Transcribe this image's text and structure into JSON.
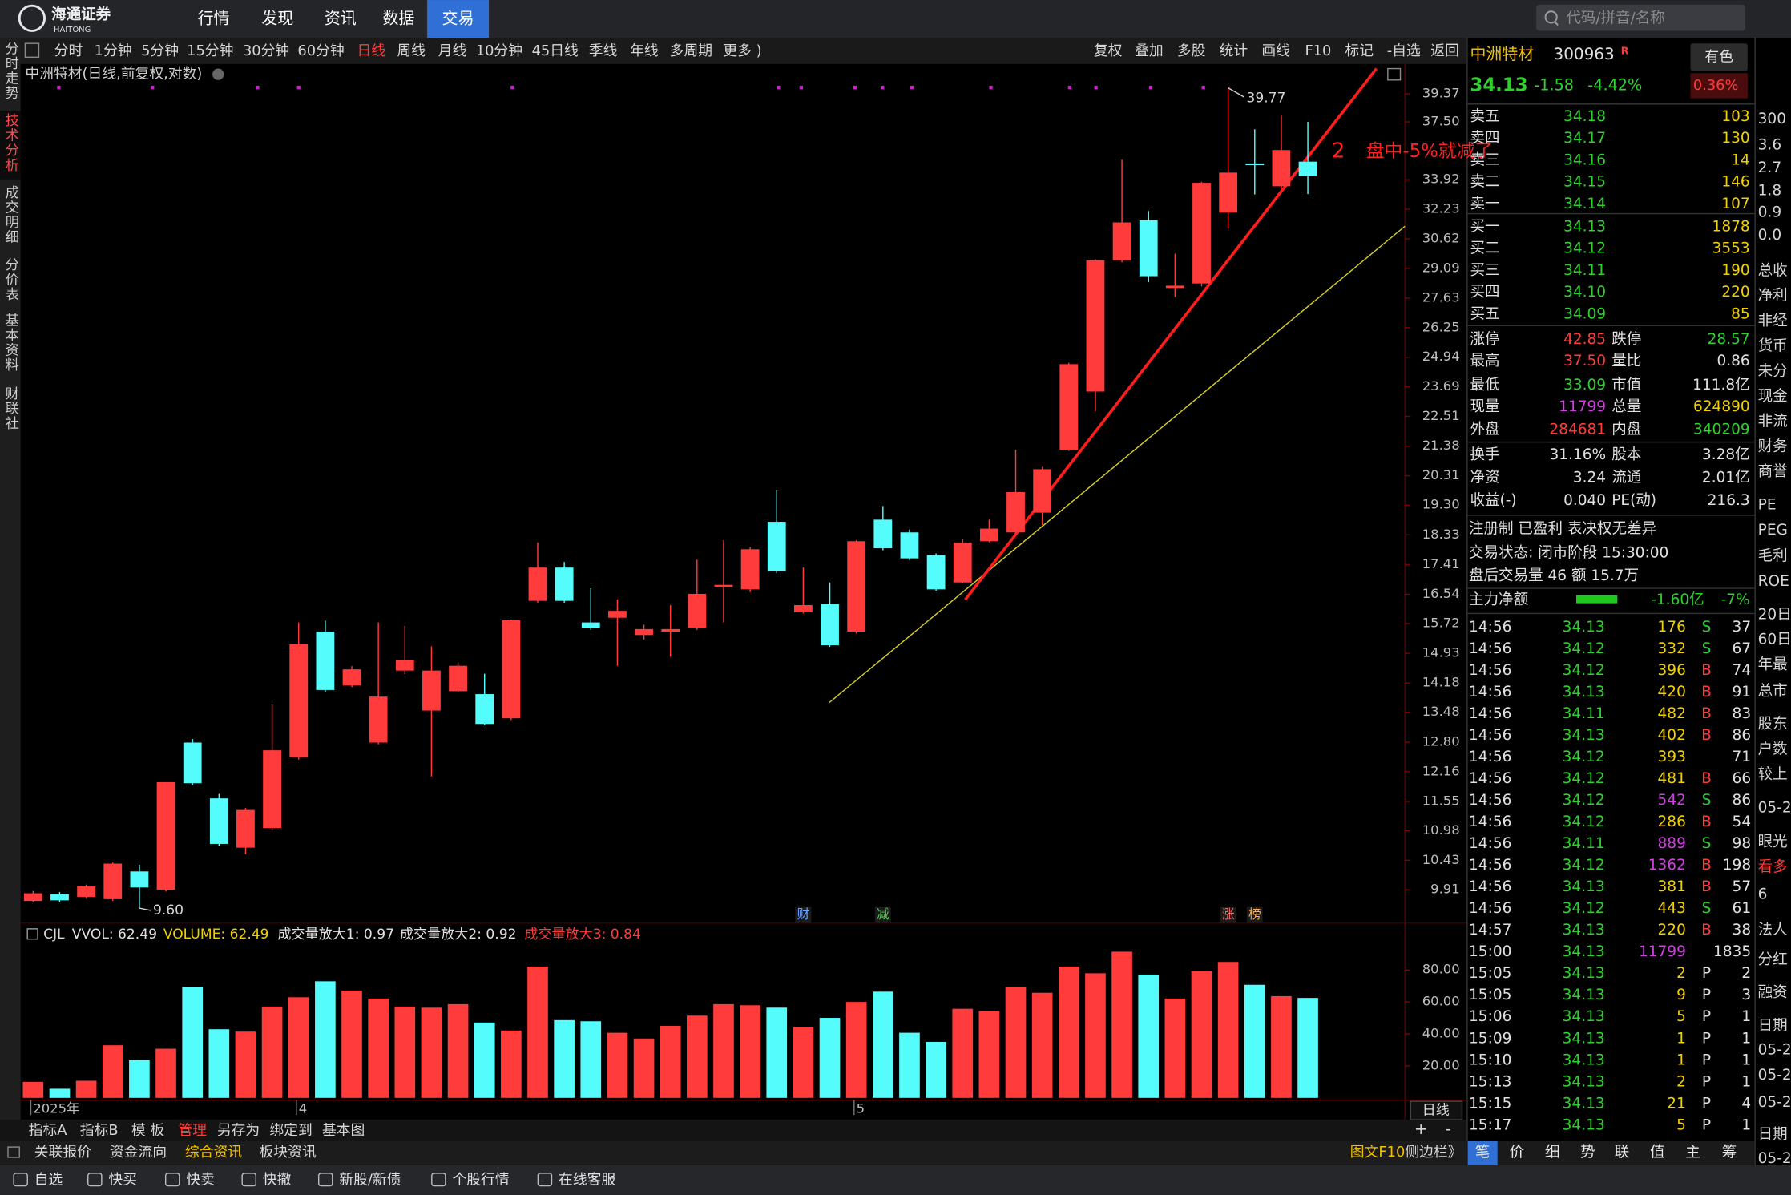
{
  "top_bar": {
    "logo": "海通证券",
    "logo_sub": "HAITONG",
    "menu": [
      "行情",
      "发现",
      "资讯",
      "数据",
      "交易"
    ],
    "search_placeholder": "代码/拼音/名称"
  },
  "side_tabs": [
    "分时走势",
    "技术分析",
    "成交明细",
    "分价表",
    "基本资料",
    "财联社"
  ],
  "chart_toolbar": {
    "periods": [
      "分时",
      "1分钟",
      "5分钟",
      "15分钟",
      "30分钟",
      "60分钟",
      "日线",
      "周线",
      "月线",
      "10分钟",
      "45日线",
      "季线",
      "年线",
      "多周期",
      "更多 )"
    ],
    "tools": [
      "复权",
      "叠加",
      "多股",
      "统计",
      "画线",
      "F10",
      "标记",
      "-自选",
      "返回"
    ]
  },
  "chart_title": "中洲特材(日线,前复权,对数)",
  "chart_data": [
    {
      "type": "candlestick",
      "categories": [
        "2025年",
        null,
        null,
        null,
        null,
        null,
        null,
        null,
        null,
        null,
        "4",
        null,
        null,
        null,
        null,
        null,
        null,
        null,
        null,
        null,
        null,
        null,
        null,
        null,
        null,
        null,
        null,
        null,
        null,
        null,
        null,
        "5",
        null,
        null,
        null,
        null,
        null,
        null,
        null,
        null,
        null,
        null,
        null,
        null,
        null,
        null,
        null,
        null,
        null
      ],
      "open": [
        9.72,
        9.83,
        9.79,
        9.75,
        10.23,
        9.91,
        12.79,
        11.61,
        10.66,
        11.03,
        12.47,
        15.5,
        14.12,
        12.79,
        14.49,
        13.52,
        13.98,
        13.91,
        13.34,
        16.35,
        17.32,
        15.75,
        15.88,
        15.41,
        15.5,
        15.6,
        16.75,
        16.68,
        18.75,
        16.03,
        16.26,
        15.5,
        18.82,
        18.41,
        17.7,
        16.88,
        18.13,
        18.41,
        19.05,
        21.24,
        23.5,
        29.5,
        31.62,
        28.12,
        28.34,
        32.04,
        34.89,
        33.54,
        35.0
      ],
      "high": [
        9.89,
        9.87,
        10.0,
        10.39,
        10.35,
        11.94,
        12.87,
        11.7,
        11.42,
        13.66,
        15.75,
        15.8,
        14.6,
        15.75,
        15.66,
        15.11,
        14.7,
        14.41,
        15.83,
        18.09,
        17.49,
        16.71,
        16.39,
        15.69,
        16.23,
        17.56,
        18.16,
        17.95,
        19.82,
        17.32,
        16.88,
        18.16,
        19.27,
        18.5,
        17.75,
        18.2,
        18.82,
        21.24,
        20.62,
        24.7,
        29.55,
        35.12,
        32.13,
        29.84,
        33.8,
        39.77,
        37.02,
        37.91,
        37.5
      ],
      "low": [
        9.7,
        9.7,
        9.76,
        9.72,
        9.6,
        9.88,
        11.88,
        10.69,
        10.54,
        10.98,
        12.42,
        13.95,
        14.08,
        12.75,
        14.4,
        12.06,
        13.95,
        13.18,
        13.3,
        16.3,
        16.3,
        15.55,
        14.61,
        15.29,
        14.84,
        15.55,
        15.75,
        16.6,
        17.15,
        16.0,
        15.1,
        15.45,
        17.85,
        17.55,
        16.64,
        16.85,
        18.1,
        18.35,
        18.64,
        21.2,
        22.72,
        29.4,
        28.4,
        27.68,
        28.2,
        31.17,
        33.07,
        33.4,
        33.09
      ],
      "close": [
        9.85,
        9.73,
        9.97,
        10.37,
        9.95,
        11.94,
        11.92,
        10.73,
        11.38,
        12.62,
        15.17,
        14.01,
        14.52,
        13.85,
        14.75,
        14.49,
        14.61,
        13.21,
        15.81,
        17.32,
        16.35,
        15.6,
        16.07,
        15.57,
        15.57,
        16.55,
        16.81,
        17.88,
        17.22,
        16.23,
        15.14,
        18.13,
        17.91,
        17.6,
        16.68,
        18.09,
        18.53,
        19.74,
        20.54,
        24.64,
        29.5,
        31.5,
        28.7,
        28.23,
        33.74,
        34.34,
        34.8,
        35.71,
        34.13
      ],
      "up_color": "#ff3b3b",
      "down_color": "#54fcfc",
      "log_scale": true,
      "ylim": [
        9.41,
        40.16
      ],
      "yticks": [
        39.37,
        {
          "value": 37.5,
          "label": "37.50"
        },
        33.92,
        32.23,
        30.62,
        29.09,
        27.63,
        26.25,
        24.94,
        23.69,
        22.51,
        21.38,
        20.31,
        {
          "value": 19.3,
          "label": "19.30"
        },
        18.33,
        17.41,
        16.54,
        15.72,
        14.93,
        14.18,
        13.48,
        {
          "value": 12.8,
          "label": "12.80"
        },
        12.16,
        11.55,
        10.98,
        10.43,
        9.91
      ],
      "high_label": "39.77",
      "low_label": "9.60",
      "note_number": "2",
      "note": "盘中-5%就减了",
      "events": [
        "财",
        "减",
        "涨",
        "榜"
      ]
    },
    {
      "type": "bar",
      "indicator": "CJL",
      "legend": [
        "VVOL: 62.49",
        "VOLUME: 62.49",
        "成交量放大1: 0.97",
        "成交量放大2: 0.92",
        "成交量放大3: 0.84"
      ],
      "values": [
        10,
        5.7,
        10.7,
        32.9,
        23.6,
        30.7,
        69.3,
        42.9,
        41.4,
        57.1,
        62.9,
        72.9,
        67.1,
        62.1,
        57.1,
        56.4,
        58.6,
        47.1,
        42.1,
        82.1,
        48.6,
        47.9,
        40.7,
        37.1,
        45,
        51.4,
        58.6,
        57.9,
        56.4,
        44.3,
        50,
        60,
        66.4,
        40.7,
        35,
        55.7,
        54.3,
        69.3,
        65.7,
        82.1,
        77.9,
        91.4,
        77.1,
        62.1,
        79.3,
        85,
        70.7,
        63.6,
        62.49
      ],
      "ylim": [
        0,
        93
      ],
      "yticks": [
        {
          "value": 80,
          "label": "80.00"
        },
        {
          "value": 60,
          "label": "60.00"
        },
        {
          "value": 40,
          "label": "40.00"
        },
        {
          "value": 20,
          "label": "20.00"
        }
      ],
      "period_label": "日线"
    }
  ],
  "axis_controls": [
    "+",
    "-"
  ],
  "indicator_tabs": [
    "指标A",
    "指标B",
    "模 板",
    "管理",
    "另存为",
    "绑定到",
    "基本图"
  ],
  "info_tabs": [
    "关联报价",
    "资金流向",
    "综合资讯",
    "板块资讯"
  ],
  "side_links": [
    "图文F10",
    "侧边栏》"
  ],
  "status_bar": [
    "自选",
    "快买",
    "快卖",
    "快撤",
    "新股/新债",
    "个股行情",
    "在线客服"
  ],
  "quote": {
    "name": "中洲特材",
    "code": "300963",
    "badge": "R",
    "sector": "有色",
    "price": "34.13",
    "change": "-1.58",
    "change_pct": "-4.42%",
    "sector_change": "0.36%"
  },
  "order_book": [
    [
      "卖五",
      "34.18",
      "103"
    ],
    [
      "卖四",
      "34.17",
      "130"
    ],
    [
      "卖三",
      "34.16",
      "14"
    ],
    [
      "卖二",
      "34.15",
      "146"
    ],
    [
      "卖一",
      "34.14",
      "107"
    ],
    [
      "买一",
      "34.13",
      "1878"
    ],
    [
      "买二",
      "34.12",
      "3553"
    ],
    [
      "买三",
      "34.11",
      "190"
    ],
    [
      "买四",
      "34.10",
      "220"
    ],
    [
      "买五",
      "34.09",
      "85"
    ]
  ],
  "stats": [
    [
      "涨停",
      "42.85",
      "跌停",
      "28.57"
    ],
    [
      "最高",
      "37.50",
      "量比",
      "0.86"
    ],
    [
      "最低",
      "33.09",
      "市值",
      "111.8亿"
    ],
    [
      "现量",
      "11799",
      "总量",
      "624890"
    ],
    [
      "外盘",
      "284681",
      "内盘",
      "340209"
    ],
    [
      "换手",
      "31.16%",
      "股本",
      "3.28亿"
    ],
    [
      "净资",
      "3.24",
      "流通",
      "2.01亿"
    ],
    [
      "收益(-)",
      "0.040",
      "PE(动)",
      "216.3"
    ]
  ],
  "info_lines": [
    "注册制 已盈利 表决权无差异",
    "交易状态: 闭市阶段 15:30:00",
    "盘后交易量 46 额 15.7万"
  ],
  "main_force": {
    "label": "主力净额",
    "value": "-1.60亿",
    "pct": "-7%"
  },
  "trades": [
    [
      "14:56",
      "34.13",
      "176",
      "S",
      "37"
    ],
    [
      "14:56",
      "34.12",
      "332",
      "S",
      "67"
    ],
    [
      "14:56",
      "34.12",
      "396",
      "B",
      "74"
    ],
    [
      "14:56",
      "34.13",
      "420",
      "B",
      "91"
    ],
    [
      "14:56",
      "34.11",
      "482",
      "B",
      "83"
    ],
    [
      "14:56",
      "34.13",
      "402",
      "B",
      "86"
    ],
    [
      "14:56",
      "34.12",
      "393",
      null,
      "71"
    ],
    [
      "14:56",
      "34.12",
      "481",
      "B",
      "66"
    ],
    [
      "14:56",
      "34.12",
      "542",
      "S",
      "86"
    ],
    [
      "14:56",
      "34.12",
      "286",
      "B",
      "54"
    ],
    [
      "14:56",
      "34.11",
      "889",
      "S",
      "98"
    ],
    [
      "14:56",
      "34.12",
      "1362",
      "B",
      "198"
    ],
    [
      "14:56",
      "34.13",
      "381",
      "B",
      "57"
    ],
    [
      "14:56",
      "34.12",
      "443",
      "S",
      "61"
    ],
    [
      "14:57",
      "34.13",
      "220",
      "B",
      "38"
    ],
    [
      "15:00",
      "34.13",
      "11799",
      null,
      "1835"
    ],
    [
      "15:05",
      "34.13",
      "2",
      "P",
      "2"
    ],
    [
      "15:05",
      "34.13",
      "9",
      "P",
      "3"
    ],
    [
      "15:06",
      "34.13",
      "5",
      "P",
      "1"
    ],
    [
      "15:09",
      "34.13",
      "1",
      "P",
      "1"
    ],
    [
      "15:10",
      "34.13",
      "1",
      "P",
      "1"
    ],
    [
      "15:13",
      "34.13",
      "2",
      "P",
      "1"
    ],
    [
      "15:15",
      "34.13",
      "21",
      "P",
      "4"
    ],
    [
      "15:17",
      "34.13",
      "5",
      "P",
      "1"
    ]
  ],
  "trade_tabs": [
    "笔",
    "价",
    "细",
    "势",
    "联",
    "值",
    "主",
    "筹"
  ],
  "side_strip": [
    "300",
    "3.6",
    "2.7",
    "1.8",
    "0.9",
    "0.0",
    "总收",
    "净利",
    "非经",
    "货币",
    "未分",
    "现金",
    "非流",
    "财务",
    "商誉",
    "PE",
    "PEG",
    "毛利",
    "ROE",
    "20日",
    "60日",
    "年最",
    "总市",
    "股东",
    "户数",
    "较上",
    "05-2",
    "眼光",
    "看多",
    "6",
    "法人",
    "分红",
    "融资",
    "日期",
    "05-2",
    "05-2",
    "05-2",
    "日期",
    "05-2"
  ]
}
